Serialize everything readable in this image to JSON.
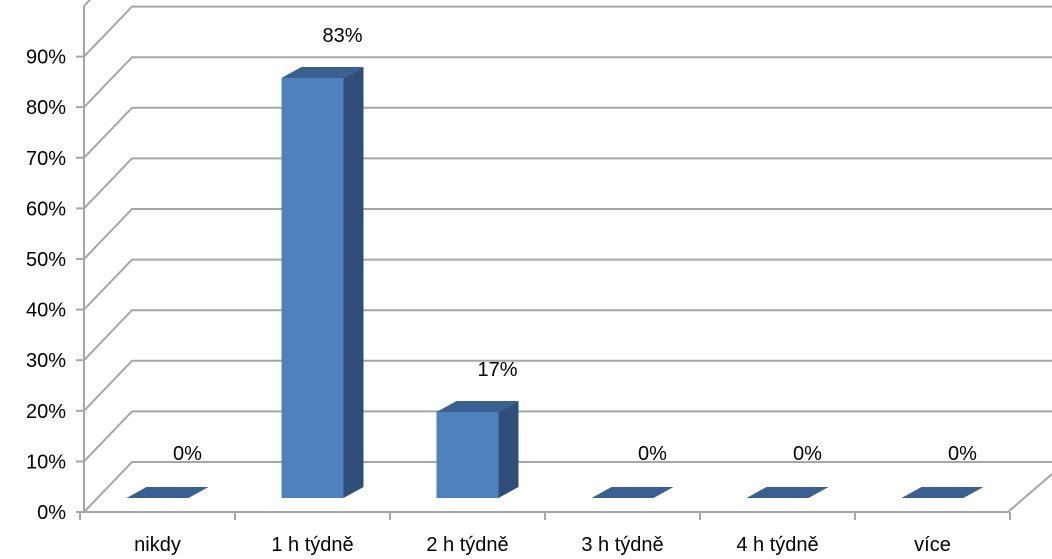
{
  "chart_data": {
    "type": "bar",
    "three_d": true,
    "categories": [
      "nikdy",
      "1 h týdně",
      "2 h týdně",
      "3 h týdně",
      "4 h týdně",
      "více"
    ],
    "values": [
      0,
      83,
      17,
      0,
      0,
      0
    ],
    "data_labels": [
      "0%",
      "83%",
      "17%",
      "0%",
      "0%",
      "0%"
    ],
    "y_ticks": [
      "0%",
      "10%",
      "20%",
      "30%",
      "40%",
      "50%",
      "60%",
      "70%",
      "80%",
      "90%"
    ],
    "ylim": [
      0,
      100
    ],
    "grid": true,
    "legend": "none",
    "colors": {
      "bar_front": "#4f81bd",
      "bar_side": "#2f4f7a",
      "bar_top": "#3a6091",
      "grid": "#a6a6a6"
    }
  }
}
